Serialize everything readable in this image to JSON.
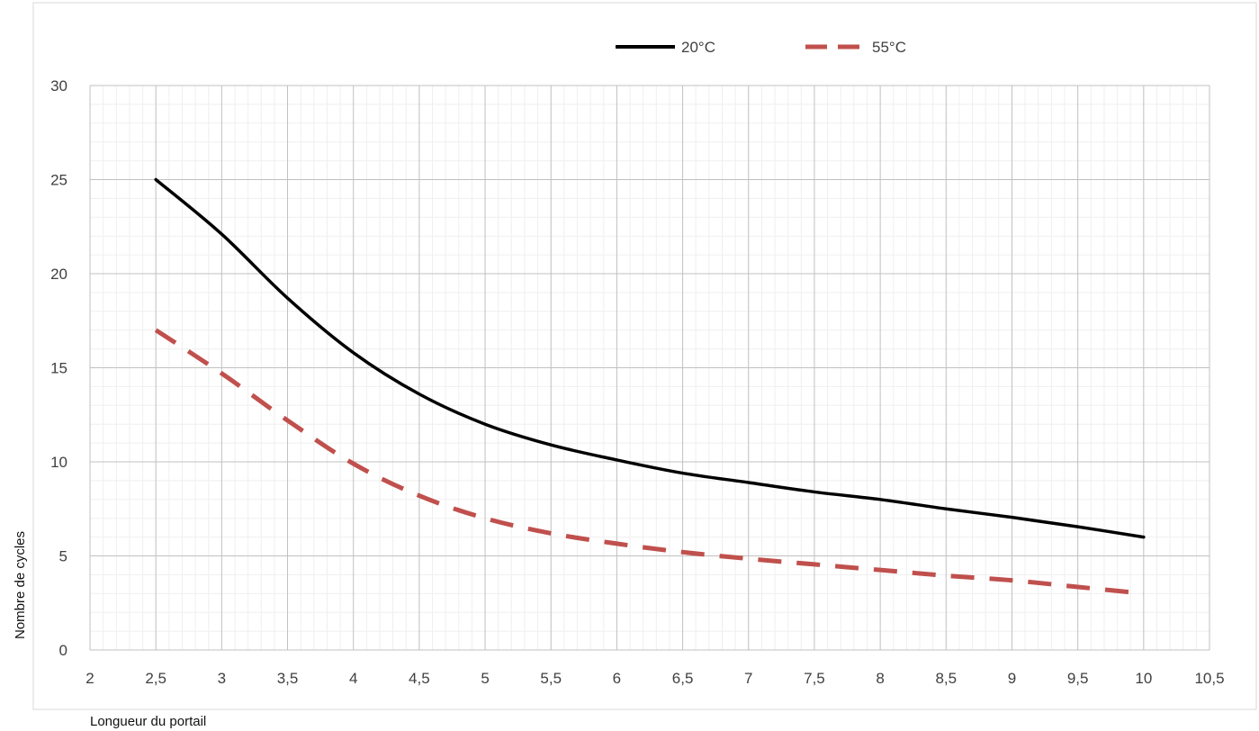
{
  "chart_data": {
    "type": "line",
    "title": "",
    "xlabel": "Longueur du portail",
    "ylabel": "Nombre de cycles",
    "xlim": [
      2,
      10.5
    ],
    "ylim": [
      0,
      30
    ],
    "x_ticks": [
      "2",
      "2,5",
      "3",
      "3,5",
      "4",
      "4,5",
      "5",
      "5,5",
      "6",
      "6,5",
      "7",
      "7,5",
      "8",
      "8,5",
      "9",
      "9,5",
      "10",
      "10,5"
    ],
    "y_ticks": [
      "0",
      "5",
      "10",
      "15",
      "20",
      "25",
      "30"
    ],
    "grid": true,
    "legend_position": "top",
    "series": [
      {
        "name": "20°C",
        "color": "#000000",
        "style": "solid",
        "x": [
          2.5,
          3,
          3.5,
          4,
          4.5,
          5,
          5.5,
          6,
          6.5,
          7,
          7.5,
          8,
          8.5,
          9,
          9.5,
          10
        ],
        "y": [
          25,
          22.1,
          18.7,
          15.8,
          13.6,
          12.0,
          10.9,
          10.1,
          9.4,
          8.9,
          8.4,
          8.0,
          7.5,
          7.05,
          6.55,
          6.0
        ]
      },
      {
        "name": "55°C",
        "color": "#c0504d",
        "style": "dashed",
        "x": [
          2.5,
          3,
          3.5,
          4,
          4.5,
          5,
          5.5,
          6,
          6.5,
          7,
          7.5,
          8,
          8.5,
          9,
          9.5,
          10
        ],
        "y": [
          17,
          14.7,
          12.2,
          9.9,
          8.2,
          7.0,
          6.2,
          5.65,
          5.2,
          4.85,
          4.55,
          4.25,
          3.95,
          3.7,
          3.35,
          3.0
        ]
      }
    ]
  }
}
